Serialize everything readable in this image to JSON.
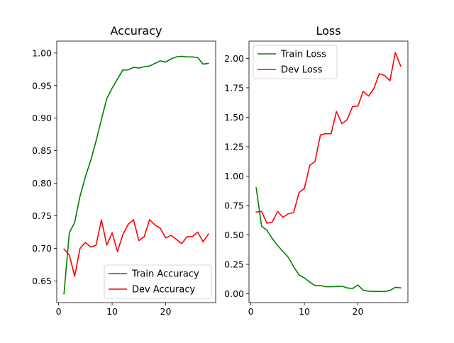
{
  "chart_data": [
    {
      "type": "line",
      "title": "Accuracy",
      "xlabel": "",
      "ylabel": "",
      "xlim": [
        -0.35,
        29.35
      ],
      "ylim": [
        0.6167,
        1.0183
      ],
      "xticks": [
        0,
        10,
        20
      ],
      "yticks": [
        0.65,
        0.7,
        0.75,
        0.8,
        0.85,
        0.9,
        0.95,
        1.0
      ],
      "ytick_labels": [
        "0.65",
        "0.70",
        "0.75",
        "0.80",
        "0.85",
        "0.90",
        "0.95",
        "1.00"
      ],
      "legend_position": "lower-right",
      "grid": false,
      "x": [
        1,
        2,
        3,
        4,
        5,
        6,
        7,
        8,
        9,
        10,
        11,
        12,
        13,
        14,
        15,
        16,
        17,
        18,
        19,
        20,
        21,
        22,
        23,
        24,
        25,
        26,
        27,
        28
      ],
      "series": [
        {
          "name": "Train Accuracy",
          "color": "#008000",
          "values": [
            0.63,
            0.724,
            0.74,
            0.78,
            0.81,
            0.835,
            0.865,
            0.898,
            0.93,
            0.946,
            0.96,
            0.974,
            0.974,
            0.978,
            0.977,
            0.979,
            0.98,
            0.984,
            0.988,
            0.986,
            0.991,
            0.994,
            0.995,
            0.994,
            0.994,
            0.993,
            0.983,
            0.984
          ]
        },
        {
          "name": "Dev Accuracy",
          "color": "#ff0000",
          "values": [
            0.699,
            0.69,
            0.657,
            0.7,
            0.709,
            0.702,
            0.705,
            0.744,
            0.705,
            0.724,
            0.695,
            0.721,
            0.737,
            0.744,
            0.712,
            0.718,
            0.744,
            0.736,
            0.731,
            0.716,
            0.72,
            0.714,
            0.707,
            0.718,
            0.718,
            0.725,
            0.71,
            0.722
          ]
        }
      ]
    },
    {
      "type": "line",
      "title": "Loss",
      "xlabel": "",
      "ylabel": "",
      "xlim": [
        -0.35,
        29.35
      ],
      "ylim": [
        -0.0748,
        2.147
      ],
      "xticks": [
        0,
        10,
        20
      ],
      "yticks": [
        0.0,
        0.25,
        0.5,
        0.75,
        1.0,
        1.25,
        1.5,
        1.75,
        2.0
      ],
      "ytick_labels": [
        "0.00",
        "0.25",
        "0.50",
        "0.75",
        "1.00",
        "1.25",
        "1.50",
        "1.75",
        "2.00"
      ],
      "legend_position": "upper-left",
      "grid": false,
      "x": [
        1,
        2,
        3,
        4,
        5,
        6,
        7,
        8,
        9,
        10,
        11,
        12,
        13,
        14,
        15,
        16,
        17,
        18,
        19,
        20,
        21,
        22,
        23,
        24,
        25,
        26,
        27,
        28
      ],
      "series": [
        {
          "name": "Train Loss",
          "color": "#008000",
          "values": [
            0.9,
            0.575,
            0.54,
            0.47,
            0.41,
            0.36,
            0.31,
            0.23,
            0.16,
            0.135,
            0.1,
            0.07,
            0.07,
            0.06,
            0.06,
            0.062,
            0.065,
            0.05,
            0.045,
            0.075,
            0.03,
            0.022,
            0.02,
            0.02,
            0.019,
            0.028,
            0.055,
            0.05
          ]
        },
        {
          "name": "Dev Loss",
          "color": "#ff0000",
          "values": [
            0.695,
            0.7,
            0.6,
            0.61,
            0.7,
            0.65,
            0.68,
            0.69,
            0.86,
            0.895,
            1.09,
            1.125,
            1.35,
            1.36,
            1.36,
            1.55,
            1.445,
            1.48,
            1.59,
            1.595,
            1.72,
            1.68,
            1.745,
            1.87,
            1.855,
            1.81,
            2.05,
            1.935
          ]
        }
      ]
    }
  ]
}
